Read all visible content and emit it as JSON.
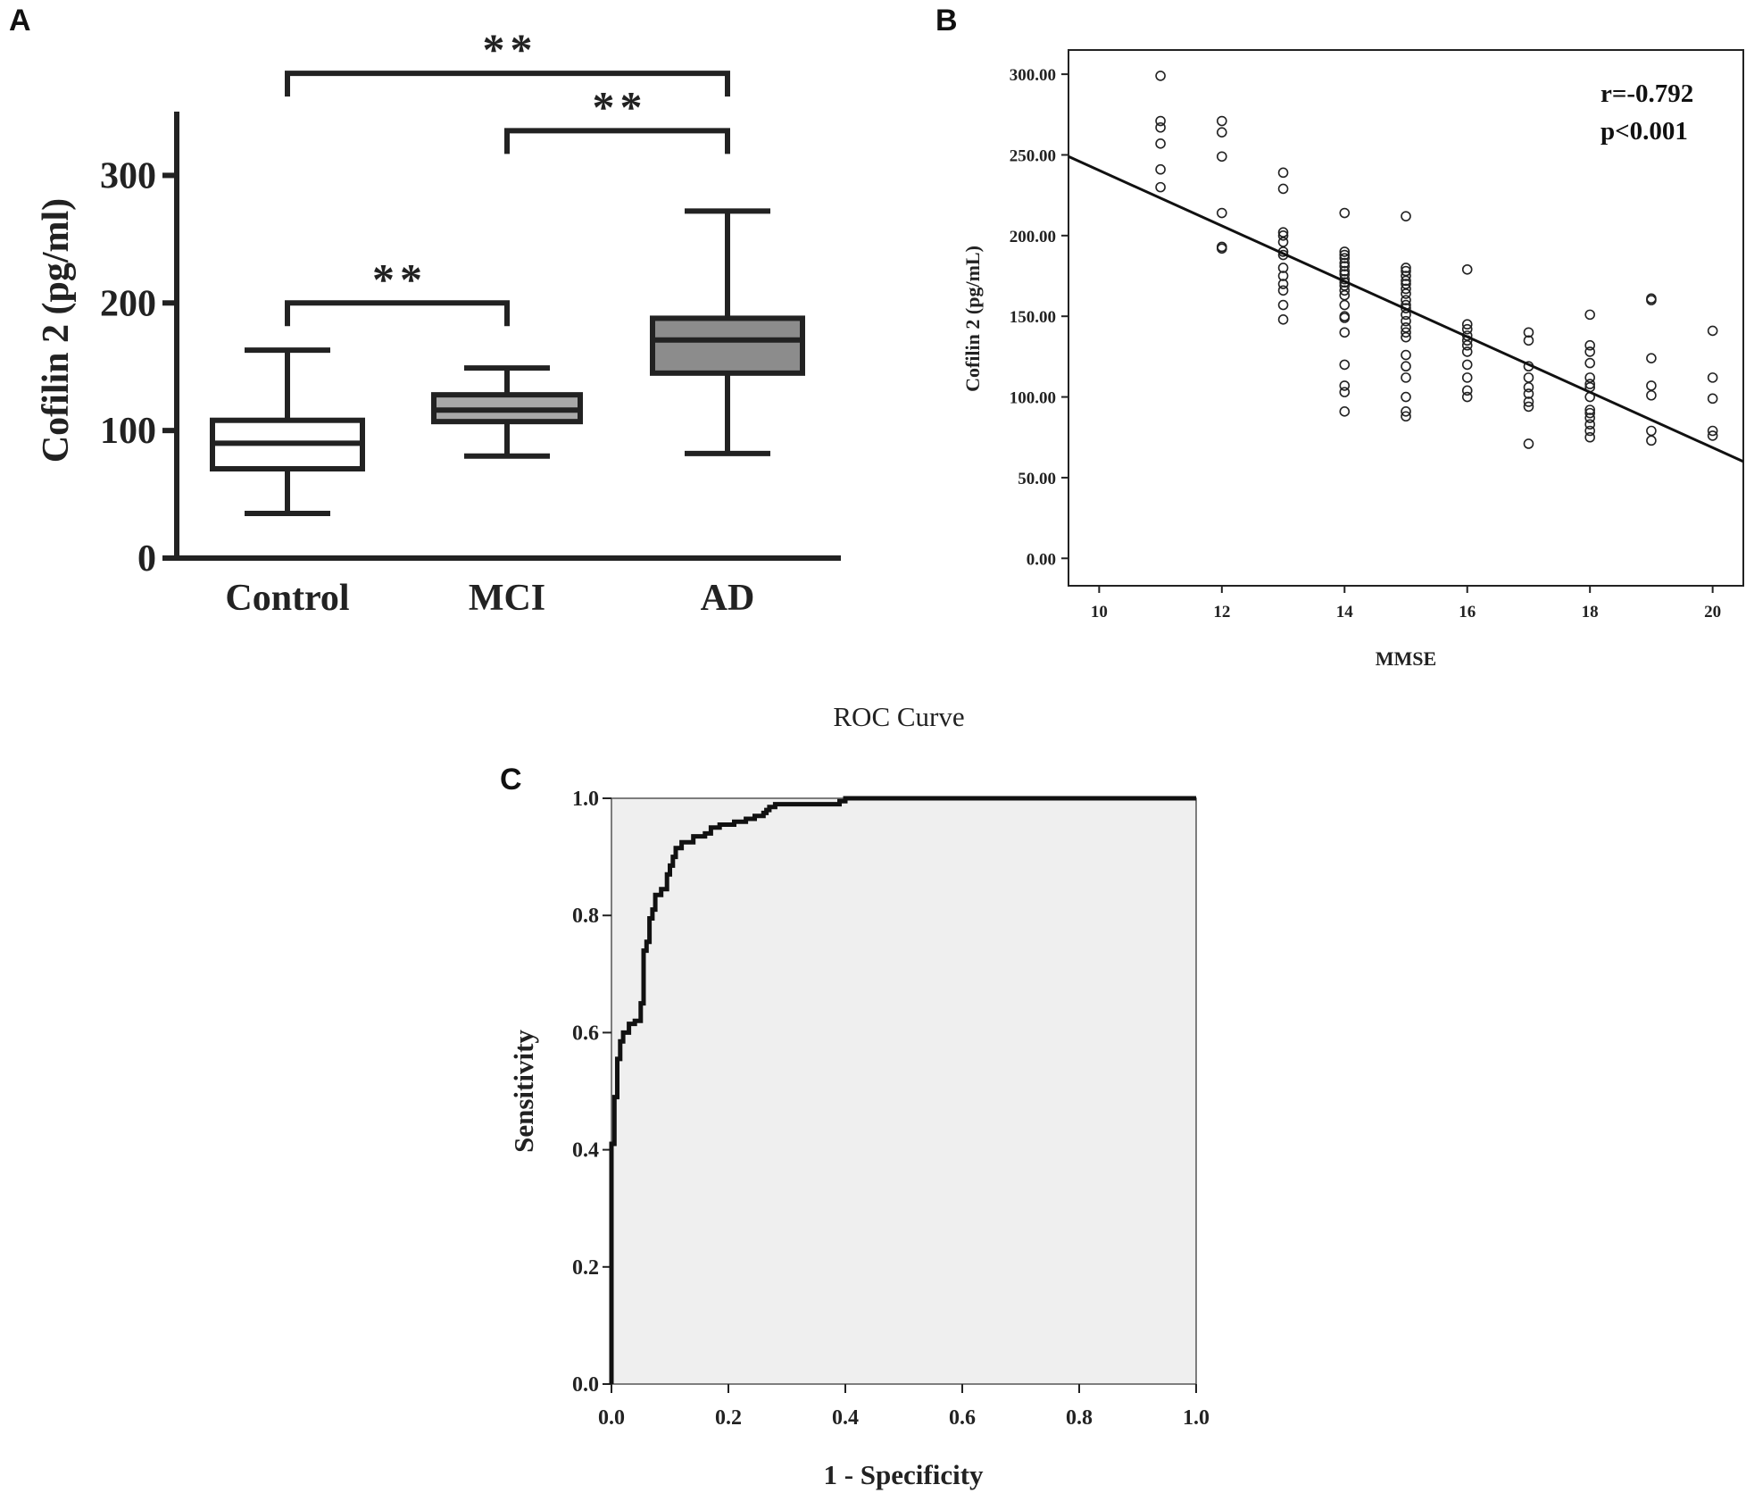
{
  "chart_data": [
    {
      "panel": "A",
      "type": "box",
      "ylabel": "Cofilin 2 (pg/ml)",
      "ylim": [
        0,
        350
      ],
      "yticks": [
        0,
        100,
        200,
        300
      ],
      "ytick_labels": [
        "0",
        "100",
        "200",
        "300"
      ],
      "categories": [
        "Control",
        "MCI",
        "AD"
      ],
      "boxes": [
        {
          "name": "Control",
          "min": 35,
          "q1": 70,
          "median": 90,
          "q3": 108,
          "max": 163,
          "fill": "#ffffff"
        },
        {
          "name": "MCI",
          "min": 80,
          "q1": 107,
          "median": 116,
          "q3": 128,
          "max": 149,
          "fill": "#a8a8a8"
        },
        {
          "name": "AD",
          "min": 82,
          "q1": 145,
          "median": 171,
          "q3": 188,
          "max": 272,
          "fill": "#8c8c8c"
        }
      ],
      "significance": [
        {
          "from": "Control",
          "to": "MCI",
          "label": "**",
          "level": 200
        },
        {
          "from": "MCI",
          "to": "AD",
          "label": "**",
          "level": 335
        },
        {
          "from": "Control",
          "to": "AD",
          "label": "**",
          "level": 380
        }
      ]
    },
    {
      "panel": "B",
      "type": "scatter",
      "xlabel": "MMSE",
      "ylabel": "Cofilin 2 (pg/mL)",
      "xlim": [
        9.5,
        20.5
      ],
      "ylim": [
        -17,
        315
      ],
      "xticks": [
        10,
        12,
        14,
        16,
        18,
        20
      ],
      "xtick_labels": [
        "10",
        "12",
        "14",
        "16",
        "18",
        "20"
      ],
      "yticks": [
        0,
        50,
        100,
        150,
        200,
        250,
        300
      ],
      "ytick_labels": [
        "0.00",
        "50.00",
        "100.00",
        "150.00",
        "200.00",
        "250.00",
        "300.00"
      ],
      "fit_line": {
        "x": [
          9.5,
          20.5
        ],
        "y": [
          249,
          60
        ]
      },
      "stats": [
        "r=-0.792",
        "p<0.001"
      ],
      "points": [
        [
          11,
          299
        ],
        [
          11,
          271
        ],
        [
          11,
          267
        ],
        [
          11,
          257
        ],
        [
          11,
          241
        ],
        [
          11,
          230
        ],
        [
          12,
          271
        ],
        [
          12,
          264
        ],
        [
          12,
          249
        ],
        [
          12,
          214
        ],
        [
          12,
          193
        ],
        [
          12,
          192
        ],
        [
          13,
          239
        ],
        [
          13,
          229
        ],
        [
          13,
          202
        ],
        [
          13,
          200
        ],
        [
          13,
          196
        ],
        [
          13,
          190
        ],
        [
          13,
          188
        ],
        [
          13,
          180
        ],
        [
          13,
          175
        ],
        [
          13,
          170
        ],
        [
          13,
          166
        ],
        [
          13,
          157
        ],
        [
          13,
          148
        ],
        [
          14,
          214
        ],
        [
          14,
          190
        ],
        [
          14,
          188
        ],
        [
          14,
          186
        ],
        [
          14,
          183
        ],
        [
          14,
          181
        ],
        [
          14,
          178
        ],
        [
          14,
          176
        ],
        [
          14,
          173
        ],
        [
          14,
          171
        ],
        [
          14,
          169
        ],
        [
          14,
          166
        ],
        [
          14,
          163
        ],
        [
          14,
          157
        ],
        [
          14,
          150
        ],
        [
          14,
          149
        ],
        [
          14,
          140
        ],
        [
          14,
          120
        ],
        [
          14,
          107
        ],
        [
          14,
          103
        ],
        [
          14,
          91
        ],
        [
          15,
          212
        ],
        [
          15,
          180
        ],
        [
          15,
          178
        ],
        [
          15,
          175
        ],
        [
          15,
          172
        ],
        [
          15,
          170
        ],
        [
          15,
          167
        ],
        [
          15,
          164
        ],
        [
          15,
          160
        ],
        [
          15,
          157
        ],
        [
          15,
          155
        ],
        [
          15,
          151
        ],
        [
          15,
          147
        ],
        [
          15,
          143
        ],
        [
          15,
          140
        ],
        [
          15,
          137
        ],
        [
          15,
          126
        ],
        [
          15,
          119
        ],
        [
          15,
          112
        ],
        [
          15,
          100
        ],
        [
          15,
          91
        ],
        [
          15,
          88
        ],
        [
          16,
          179
        ],
        [
          16,
          145
        ],
        [
          16,
          142
        ],
        [
          16,
          138
        ],
        [
          16,
          135
        ],
        [
          16,
          132
        ],
        [
          16,
          128
        ],
        [
          16,
          120
        ],
        [
          16,
          112
        ],
        [
          16,
          104
        ],
        [
          16,
          100
        ],
        [
          17,
          140
        ],
        [
          17,
          135
        ],
        [
          17,
          119
        ],
        [
          17,
          112
        ],
        [
          17,
          106
        ],
        [
          17,
          102
        ],
        [
          17,
          97
        ],
        [
          17,
          94
        ],
        [
          17,
          71
        ],
        [
          18,
          151
        ],
        [
          18,
          132
        ],
        [
          18,
          128
        ],
        [
          18,
          121
        ],
        [
          18,
          112
        ],
        [
          18,
          108
        ],
        [
          18,
          106
        ],
        [
          18,
          100
        ],
        [
          18,
          92
        ],
        [
          18,
          90
        ],
        [
          18,
          87
        ],
        [
          18,
          83
        ],
        [
          18,
          79
        ],
        [
          18,
          75
        ],
        [
          19,
          161
        ],
        [
          19,
          160
        ],
        [
          19,
          124
        ],
        [
          19,
          107
        ],
        [
          19,
          101
        ],
        [
          19,
          79
        ],
        [
          19,
          73
        ],
        [
          20,
          141
        ],
        [
          20,
          112
        ],
        [
          20,
          99
        ],
        [
          20,
          79
        ],
        [
          20,
          76
        ]
      ]
    },
    {
      "panel": "C",
      "type": "line",
      "title": "ROC Curve",
      "xlabel": "1 - Specificity",
      "ylabel": "Sensitivity",
      "xlim": [
        0,
        1
      ],
      "ylim": [
        0,
        1
      ],
      "xticks": [
        0,
        0.2,
        0.4,
        0.6,
        0.8,
        1
      ],
      "xtick_labels": [
        "0.0",
        "0.2",
        "0.4",
        "0.6",
        "0.8",
        "1.0"
      ],
      "yticks": [
        0,
        0.2,
        0.4,
        0.6,
        0.8,
        1
      ],
      "ytick_labels": [
        "0.0",
        "0.2",
        "0.4",
        "0.6",
        "0.8",
        "1.0"
      ],
      "series": [
        {
          "name": "ROC",
          "x": [
            0,
            0,
            0.005,
            0.005,
            0.01,
            0.01,
            0.015,
            0.015,
            0.02,
            0.02,
            0.03,
            0.03,
            0.04,
            0.04,
            0.05,
            0.05,
            0.055,
            0.055,
            0.06,
            0.06,
            0.065,
            0.065,
            0.07,
            0.07,
            0.075,
            0.075,
            0.085,
            0.085,
            0.095,
            0.095,
            0.1,
            0.1,
            0.105,
            0.105,
            0.11,
            0.11,
            0.12,
            0.12,
            0.14,
            0.14,
            0.16,
            0.16,
            0.17,
            0.17,
            0.185,
            0.185,
            0.21,
            0.21,
            0.23,
            0.23,
            0.245,
            0.245,
            0.26,
            0.26,
            0.265,
            0.265,
            0.27,
            0.27,
            0.28,
            0.28,
            0.39,
            0.39,
            0.4,
            0.4,
            1.0
          ],
          "y": [
            0,
            0.41,
            0.41,
            0.49,
            0.49,
            0.555,
            0.555,
            0.585,
            0.585,
            0.6,
            0.6,
            0.615,
            0.615,
            0.62,
            0.62,
            0.65,
            0.65,
            0.74,
            0.74,
            0.755,
            0.755,
            0.795,
            0.795,
            0.81,
            0.81,
            0.835,
            0.835,
            0.845,
            0.845,
            0.87,
            0.87,
            0.885,
            0.885,
            0.9,
            0.9,
            0.915,
            0.915,
            0.925,
            0.925,
            0.935,
            0.935,
            0.94,
            0.94,
            0.95,
            0.95,
            0.955,
            0.955,
            0.96,
            0.96,
            0.965,
            0.965,
            0.97,
            0.97,
            0.975,
            0.975,
            0.98,
            0.98,
            0.985,
            0.985,
            0.99,
            0.99,
            0.995,
            0.995,
            1.0,
            1.0
          ]
        }
      ]
    }
  ],
  "panels": {
    "a": "A",
    "b": "B",
    "c": "C"
  }
}
